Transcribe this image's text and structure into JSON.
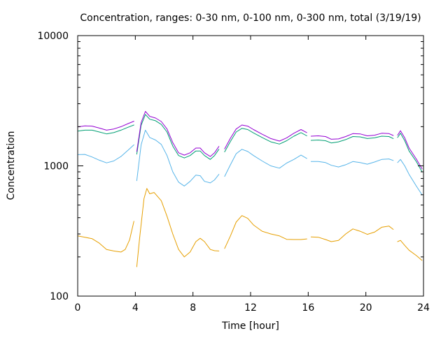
{
  "chart_data": {
    "type": "line",
    "title": "Concentration, ranges: 0-30 nm, 0-100 nm, 0-300 nm, total (3/19/19)",
    "xlabel": "Time [hour]",
    "ylabel": "Concentration",
    "xlim": [
      0,
      24
    ],
    "ylim": [
      100,
      10000
    ],
    "yscale": "log",
    "xticks": [
      0,
      4,
      8,
      12,
      16,
      20,
      24
    ],
    "xtick_labels": [
      "0",
      "4",
      "8",
      "12",
      "16",
      "20",
      "24"
    ],
    "yticks": [
      100,
      1000,
      10000
    ],
    "ytick_labels": [
      "100",
      "1000",
      "10000"
    ],
    "grid": false,
    "legend": "none",
    "series": [
      {
        "color": "#e69f00",
        "segments": [
          [
            [
              0,
              290
            ],
            [
              0.5,
              283
            ],
            [
              1,
              276
            ],
            [
              1.5,
              255
            ],
            [
              2,
              228
            ],
            [
              2.5,
              222
            ],
            [
              3,
              218
            ],
            [
              3.3,
              228
            ],
            [
              3.6,
              270
            ],
            [
              3.9,
              375
            ]
          ],
          [
            [
              4.1,
              168
            ],
            [
              4.3,
              280
            ],
            [
              4.6,
              560
            ],
            [
              4.8,
              670
            ],
            [
              5.0,
              610
            ],
            [
              5.3,
              625
            ],
            [
              5.8,
              540
            ],
            [
              6.2,
              410
            ],
            [
              6.6,
              300
            ],
            [
              7.0,
              228
            ],
            [
              7.4,
              200
            ],
            [
              7.8,
              218
            ],
            [
              8.2,
              262
            ],
            [
              8.5,
              278
            ],
            [
              8.8,
              262
            ],
            [
              9.2,
              228
            ],
            [
              9.5,
              223
            ],
            [
              9.8,
              222
            ]
          ],
          [
            [
              10.2,
              232
            ],
            [
              10.6,
              290
            ],
            [
              11.0,
              370
            ],
            [
              11.4,
              415
            ],
            [
              11.8,
              395
            ],
            [
              12.2,
              352
            ],
            [
              12.8,
              315
            ],
            [
              13.4,
              300
            ],
            [
              14.0,
              290
            ],
            [
              14.5,
              273
            ],
            [
              15.0,
              272
            ],
            [
              15.5,
              272
            ],
            [
              15.9,
              275
            ]
          ],
          [
            [
              16.2,
              285
            ],
            [
              16.7,
              283
            ],
            [
              17.2,
              272
            ],
            [
              17.6,
              262
            ],
            [
              18.1,
              268
            ],
            [
              18.6,
              300
            ],
            [
              19.1,
              328
            ],
            [
              19.6,
              315
            ],
            [
              20.1,
              298
            ],
            [
              20.6,
              310
            ],
            [
              21.1,
              338
            ],
            [
              21.6,
              345
            ],
            [
              21.9,
              325
            ]
          ],
          [
            [
              22.2,
              262
            ],
            [
              22.4,
              268
            ],
            [
              22.7,
              245
            ],
            [
              23.0,
              225
            ],
            [
              23.5,
              205
            ],
            [
              23.9,
              188
            ]
          ]
        ]
      },
      {
        "color": "#56b4e9",
        "segments": [
          [
            [
              0,
              1220
            ],
            [
              0.5,
              1225
            ],
            [
              1,
              1170
            ],
            [
              1.5,
              1105
            ],
            [
              2,
              1055
            ],
            [
              2.5,
              1090
            ],
            [
              3,
              1180
            ],
            [
              3.5,
              1320
            ],
            [
              3.9,
              1450
            ]
          ],
          [
            [
              4.1,
              770
            ],
            [
              4.4,
              1450
            ],
            [
              4.7,
              1880
            ],
            [
              5.0,
              1650
            ],
            [
              5.4,
              1580
            ],
            [
              5.8,
              1460
            ],
            [
              6.2,
              1200
            ],
            [
              6.6,
              900
            ],
            [
              7.0,
              750
            ],
            [
              7.4,
              700
            ],
            [
              7.8,
              760
            ],
            [
              8.2,
              850
            ],
            [
              8.5,
              840
            ],
            [
              8.8,
              760
            ],
            [
              9.2,
              740
            ],
            [
              9.5,
              780
            ],
            [
              9.8,
              860
            ]
          ],
          [
            [
              10.2,
              830
            ],
            [
              10.6,
              1020
            ],
            [
              11.0,
              1240
            ],
            [
              11.4,
              1340
            ],
            [
              11.8,
              1290
            ],
            [
              12.2,
              1200
            ],
            [
              12.8,
              1090
            ],
            [
              13.4,
              1000
            ],
            [
              14.0,
              960
            ],
            [
              14.5,
              1050
            ],
            [
              15.0,
              1120
            ],
            [
              15.5,
              1210
            ],
            [
              15.9,
              1140
            ]
          ],
          [
            [
              16.2,
              1080
            ],
            [
              16.7,
              1080
            ],
            [
              17.2,
              1060
            ],
            [
              17.6,
              1010
            ],
            [
              18.1,
              980
            ],
            [
              18.6,
              1020
            ],
            [
              19.1,
              1080
            ],
            [
              19.6,
              1060
            ],
            [
              20.1,
              1030
            ],
            [
              20.6,
              1070
            ],
            [
              21.1,
              1120
            ],
            [
              21.6,
              1130
            ],
            [
              21.9,
              1100
            ]
          ],
          [
            [
              22.2,
              1060
            ],
            [
              22.4,
              1120
            ],
            [
              22.7,
              1000
            ],
            [
              23.0,
              860
            ],
            [
              23.5,
              700
            ],
            [
              23.9,
              600
            ]
          ]
        ]
      },
      {
        "color": "#009e73",
        "segments": [
          [
            [
              0,
              1850
            ],
            [
              0.5,
              1880
            ],
            [
              1,
              1880
            ],
            [
              1.5,
              1820
            ],
            [
              2,
              1760
            ],
            [
              2.5,
              1800
            ],
            [
              3,
              1880
            ],
            [
              3.5,
              1980
            ],
            [
              3.9,
              2060
            ]
          ],
          [
            [
              4.1,
              1230
            ],
            [
              4.4,
              2050
            ],
            [
              4.7,
              2480
            ],
            [
              5.0,
              2280
            ],
            [
              5.4,
              2220
            ],
            [
              5.8,
              2080
            ],
            [
              6.2,
              1820
            ],
            [
              6.6,
              1420
            ],
            [
              7.0,
              1200
            ],
            [
              7.4,
              1150
            ],
            [
              7.8,
              1200
            ],
            [
              8.2,
              1300
            ],
            [
              8.5,
              1300
            ],
            [
              8.8,
              1200
            ],
            [
              9.2,
              1120
            ],
            [
              9.5,
              1200
            ],
            [
              9.8,
              1340
            ]
          ],
          [
            [
              10.2,
              1280
            ],
            [
              10.6,
              1540
            ],
            [
              11.0,
              1820
            ],
            [
              11.4,
              1940
            ],
            [
              11.8,
              1900
            ],
            [
              12.2,
              1790
            ],
            [
              12.8,
              1650
            ],
            [
              13.4,
              1530
            ],
            [
              14.0,
              1470
            ],
            [
              14.5,
              1560
            ],
            [
              15.0,
              1690
            ],
            [
              15.5,
              1800
            ],
            [
              15.9,
              1700
            ]
          ],
          [
            [
              16.2,
              1570
            ],
            [
              16.7,
              1580
            ],
            [
              17.2,
              1560
            ],
            [
              17.6,
              1500
            ],
            [
              18.1,
              1530
            ],
            [
              18.6,
              1590
            ],
            [
              19.1,
              1680
            ],
            [
              19.6,
              1670
            ],
            [
              20.1,
              1620
            ],
            [
              20.6,
              1640
            ],
            [
              21.1,
              1690
            ],
            [
              21.6,
              1680
            ],
            [
              21.9,
              1620
            ]
          ],
          [
            [
              22.2,
              1650
            ],
            [
              22.4,
              1780
            ],
            [
              22.7,
              1560
            ],
            [
              23.0,
              1300
            ],
            [
              23.5,
              1080
            ],
            [
              23.9,
              900
            ]
          ]
        ]
      },
      {
        "color": "#9400d3",
        "segments": [
          [
            [
              0,
              1990
            ],
            [
              0.5,
              2030
            ],
            [
              1,
              2020
            ],
            [
              1.5,
              1950
            ],
            [
              2,
              1880
            ],
            [
              2.5,
              1920
            ],
            [
              3,
              2000
            ],
            [
              3.5,
              2110
            ],
            [
              3.9,
              2200
            ]
          ],
          [
            [
              4.1,
              1290
            ],
            [
              4.4,
              2150
            ],
            [
              4.7,
              2620
            ],
            [
              5.0,
              2400
            ],
            [
              5.4,
              2330
            ],
            [
              5.8,
              2190
            ],
            [
              6.2,
              1920
            ],
            [
              6.6,
              1510
            ],
            [
              7.0,
              1260
            ],
            [
              7.4,
              1210
            ],
            [
              7.8,
              1260
            ],
            [
              8.2,
              1370
            ],
            [
              8.5,
              1370
            ],
            [
              8.8,
              1260
            ],
            [
              9.2,
              1180
            ],
            [
              9.5,
              1260
            ],
            [
              9.8,
              1410
            ]
          ],
          [
            [
              10.2,
              1350
            ],
            [
              10.6,
              1630
            ],
            [
              11.0,
              1920
            ],
            [
              11.4,
              2060
            ],
            [
              11.8,
              2020
            ],
            [
              12.2,
              1900
            ],
            [
              12.8,
              1750
            ],
            [
              13.4,
              1620
            ],
            [
              14.0,
              1550
            ],
            [
              14.5,
              1640
            ],
            [
              15.0,
              1780
            ],
            [
              15.5,
              1900
            ],
            [
              15.9,
              1800
            ]
          ],
          [
            [
              16.2,
              1690
            ],
            [
              16.7,
              1700
            ],
            [
              17.2,
              1680
            ],
            [
              17.6,
              1600
            ],
            [
              18.1,
              1610
            ],
            [
              18.6,
              1680
            ],
            [
              19.1,
              1770
            ],
            [
              19.6,
              1760
            ],
            [
              20.1,
              1700
            ],
            [
              20.6,
              1720
            ],
            [
              21.1,
              1780
            ],
            [
              21.6,
              1770
            ],
            [
              21.9,
              1710
            ]
          ],
          [
            [
              22.2,
              1720
            ],
            [
              22.4,
              1860
            ],
            [
              22.7,
              1640
            ],
            [
              23.0,
              1370
            ],
            [
              23.5,
              1130
            ],
            [
              23.9,
              950
            ]
          ]
        ]
      }
    ]
  }
}
